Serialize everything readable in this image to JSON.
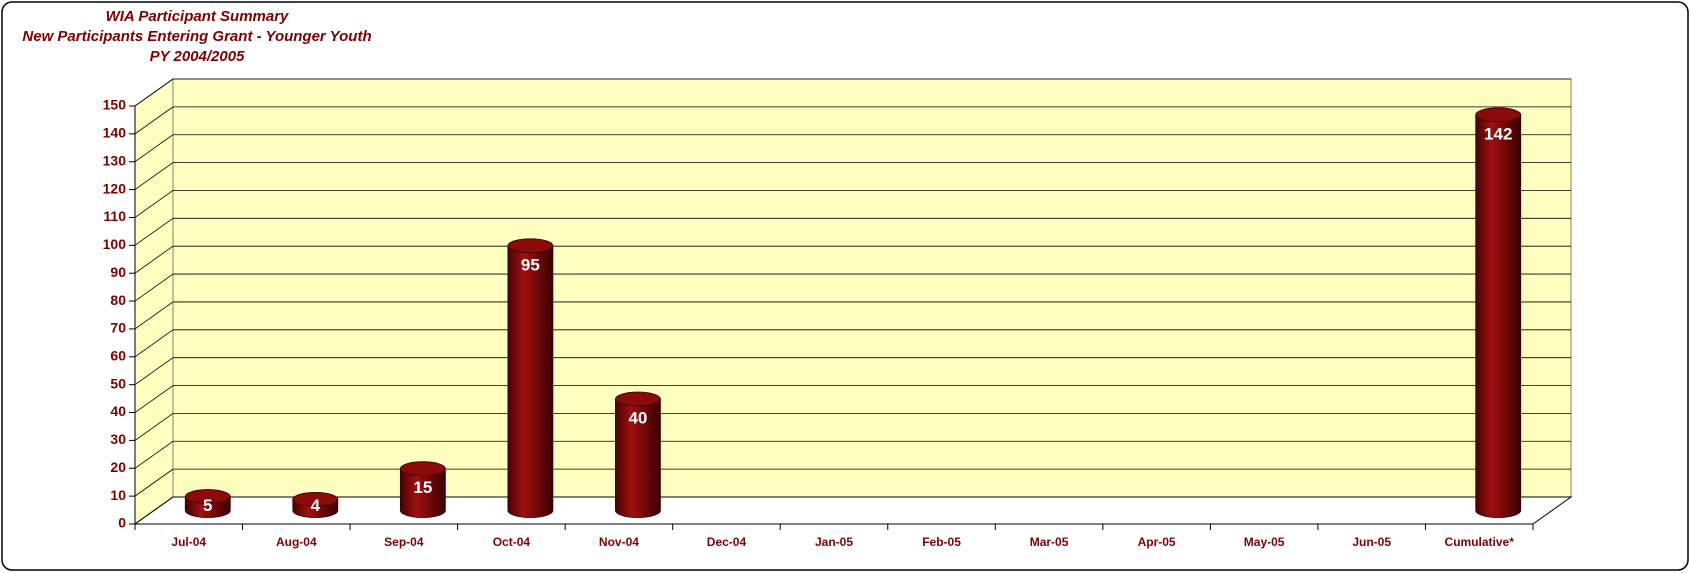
{
  "chart_data": {
    "type": "bar3d",
    "title": [
      "WIA Participant Summary",
      "New Participants Entering Grant - Younger Youth",
      "PY 2004/2005"
    ],
    "categories": [
      "Jul-04",
      "Aug-04",
      "Sep-04",
      "Oct-04",
      "Nov-04",
      "Dec-04",
      "Jan-05",
      "Feb-05",
      "Mar-05",
      "Apr-05",
      "May-05",
      "Jun-05",
      "Cumulative*"
    ],
    "values": [
      5,
      4,
      15,
      95,
      40,
      null,
      null,
      null,
      null,
      null,
      null,
      null,
      142
    ],
    "color": "#800000",
    "ylim": [
      0,
      150
    ],
    "yticks": [
      0,
      10,
      20,
      30,
      40,
      50,
      60,
      70,
      80,
      90,
      100,
      110,
      120,
      130,
      140,
      150
    ],
    "grid": true
  }
}
